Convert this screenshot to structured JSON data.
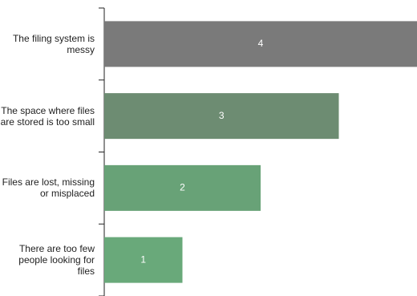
{
  "chart_data": {
    "type": "bar",
    "orientation": "horizontal",
    "categories": [
      "The filing system is messy",
      "The space where files are stored is too small",
      "Files are lost, missing or misplaced",
      "There are too few people looking for files"
    ],
    "values": [
      4,
      3,
      2,
      1
    ],
    "colors": [
      "#7a7a7a",
      "#6d8c72",
      "#68a277",
      "#69a97a"
    ]
  }
}
